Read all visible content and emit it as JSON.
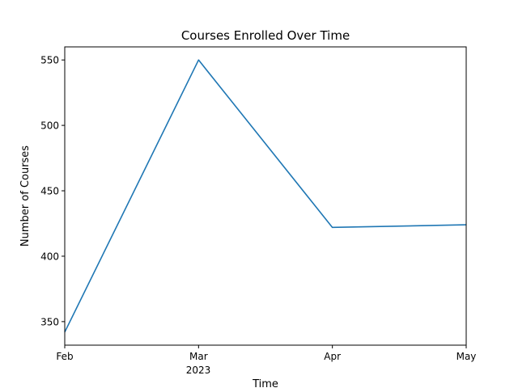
{
  "chart_data": {
    "type": "line",
    "title": "Courses Enrolled Over Time",
    "xlabel": "Time",
    "ylabel": "Number of Courses",
    "x": [
      "2023-02",
      "2023-03",
      "2023-04",
      "2023-05"
    ],
    "x_tick_labels": [
      "Feb",
      "Mar",
      "Apr",
      "May"
    ],
    "x_year_label": "2023",
    "series": [
      {
        "values": [
          342,
          550,
          422,
          424
        ],
        "color": "#1f77b4"
      }
    ],
    "y_ticks": [
      350,
      400,
      450,
      500,
      550
    ],
    "ylim": [
      332,
      560
    ],
    "grid": false,
    "legend": "none"
  }
}
